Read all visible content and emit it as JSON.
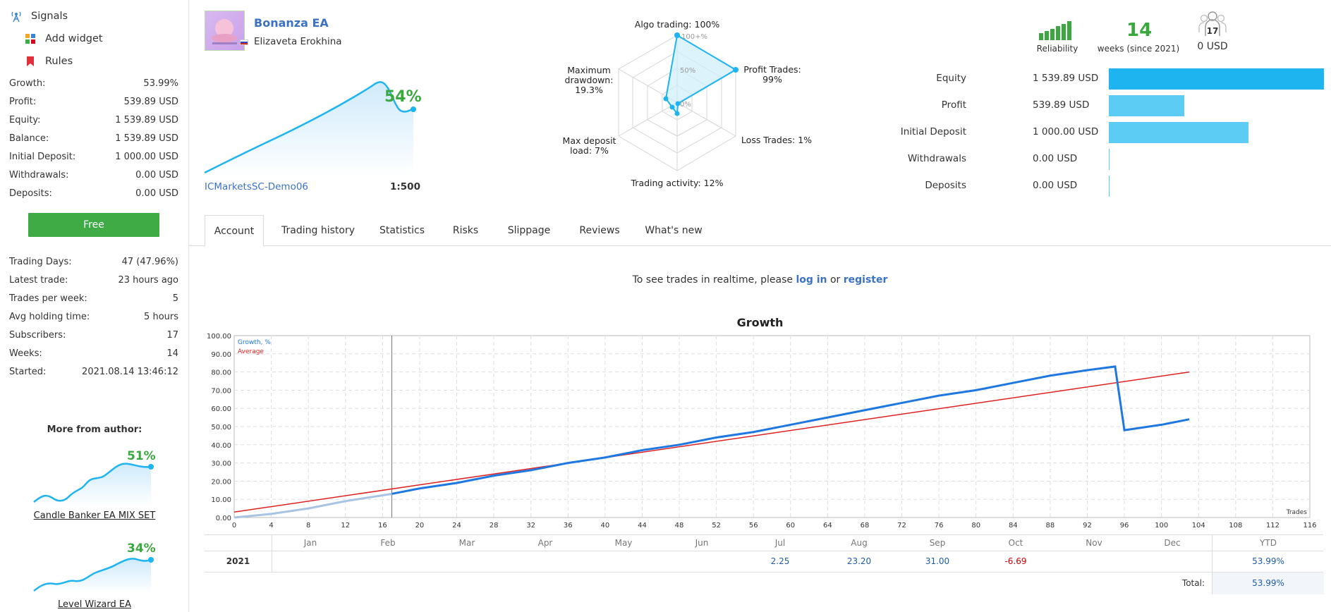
{
  "sidebar": {
    "nav": [
      {
        "label": "Signals",
        "icon": "signal-tower-icon"
      },
      {
        "label": "Add widget",
        "icon": "widget-icon"
      },
      {
        "label": "Rules",
        "icon": "bookmark-icon"
      }
    ],
    "stats": [
      {
        "label": "Growth:",
        "value": "53.99%"
      },
      {
        "label": "Profit:",
        "value": "539.89 USD"
      },
      {
        "label": "Equity:",
        "value": "1 539.89 USD"
      },
      {
        "label": "Balance:",
        "value": "1 539.89 USD"
      },
      {
        "label": "Initial Deposit:",
        "value": "1 000.00 USD"
      },
      {
        "label": "Withdrawals:",
        "value": "0.00 USD"
      },
      {
        "label": "Deposits:",
        "value": "0.00 USD"
      }
    ],
    "free_button": "Free",
    "activity": [
      {
        "label": "Trading Days:",
        "value": "47 (47.96%)"
      },
      {
        "label": "Latest trade:",
        "value": "23 hours ago"
      },
      {
        "label": "Trades per week:",
        "value": "5"
      },
      {
        "label": "Avg holding time:",
        "value": "5 hours"
      },
      {
        "label": "Subscribers:",
        "value": "17"
      },
      {
        "label": "Weeks:",
        "value": "14"
      },
      {
        "label": "Started:",
        "value": "2021.08.14 13:46:12"
      }
    ],
    "more_from_author": "More from author:",
    "author_signals": [
      {
        "name": "Candle Banker EA MIX SET",
        "pct": "51%"
      },
      {
        "name": "Level Wizard EA",
        "pct": "34%"
      }
    ]
  },
  "header": {
    "ea_name": "Bonanza EA",
    "author": "Elizaveta Erokhina",
    "growth_pct": "54%",
    "broker": "ICMarketsSC-Demo06",
    "leverage": "1:500"
  },
  "radar": {
    "algo": "Algo trading: 100%",
    "profit_trades": [
      "Profit Trades:",
      "99%"
    ],
    "loss_trades": "Loss Trades: 1%",
    "activity": "Trading activity: 12%",
    "deposit_load": [
      "Max deposit",
      "load: 7%"
    ],
    "drawdown": [
      "Maximum",
      "drawdown:",
      "19.3%"
    ],
    "scale": [
      "100+%",
      "50%",
      "0%"
    ]
  },
  "metrics": {
    "reliability_label": "Reliability",
    "weeks": "14",
    "weeks_label": "weeks (since 2021)",
    "subscribers_count": "17",
    "subscribers_funds": "0 USD",
    "colors": {
      "green": "#3aa83f",
      "blue": "#1eb4ef",
      "light_blue": "#5cccf4"
    }
  },
  "balance_bars": [
    {
      "label": "Equity",
      "value": "1 539.89 USD",
      "fraction": 1.0
    },
    {
      "label": "Profit",
      "value": "539.89 USD",
      "fraction": 0.35
    },
    {
      "label": "Initial Deposit",
      "value": "1 000.00 USD",
      "fraction": 0.65
    },
    {
      "label": "Withdrawals",
      "value": "0.00 USD",
      "fraction": 0
    },
    {
      "label": "Deposits",
      "value": "0.00 USD",
      "fraction": 0
    }
  ],
  "tabs": [
    "Account",
    "Trading history",
    "Statistics",
    "Risks",
    "Slippage",
    "Reviews",
    "What's new"
  ],
  "realtime": {
    "prefix": "To see trades in realtime, please",
    "login": "log in",
    "or": "or",
    "register": "register"
  },
  "chart_data": {
    "type": "line",
    "title": "Growth",
    "xlabel": "Trades",
    "ylabel": "",
    "xlim": [
      0,
      116
    ],
    "ylim": [
      0,
      100
    ],
    "x_ticks": [
      0,
      4,
      8,
      12,
      16,
      20,
      24,
      28,
      32,
      36,
      40,
      44,
      48,
      52,
      56,
      60,
      64,
      68,
      72,
      76,
      80,
      84,
      88,
      92,
      96,
      100,
      104,
      108,
      112,
      116
    ],
    "y_ticks": [
      "0.00",
      "10.00",
      "20.00",
      "30.00",
      "40.00",
      "50.00",
      "60.00",
      "70.00",
      "80.00",
      "90.00",
      "100.00"
    ],
    "series": [
      {
        "name": "Growth, %",
        "color": "#1f78e0",
        "x": [
          0,
          4,
          8,
          12,
          17,
          20,
          24,
          28,
          32,
          36,
          40,
          44,
          48,
          52,
          56,
          60,
          64,
          68,
          72,
          76,
          80,
          84,
          88,
          92,
          95,
          96,
          100,
          103
        ],
        "y": [
          0,
          2,
          5,
          9,
          13,
          16,
          19,
          23,
          26,
          30,
          33,
          37,
          40,
          44,
          47,
          51,
          55,
          59,
          63,
          67,
          70,
          74,
          78,
          81,
          83,
          48,
          51,
          54
        ]
      },
      {
        "name": "Average",
        "color": "#e02020",
        "x": [
          0,
          103
        ],
        "y": [
          3,
          80
        ]
      }
    ],
    "divider_x": 17,
    "months": [
      "Jan",
      "Feb",
      "Mar",
      "Apr",
      "May",
      "Jun",
      "Jul",
      "Aug",
      "Sep",
      "Oct",
      "Nov",
      "Dec"
    ],
    "ytd_label": "YTD",
    "year_row": {
      "year": "2021",
      "values": {
        "Jul": "2.25",
        "Aug": "23.20",
        "Sep": "31.00",
        "Oct": "-6.69"
      },
      "ytd": "53.99%"
    },
    "total_label": "Total:",
    "total_value": "53.99%"
  }
}
